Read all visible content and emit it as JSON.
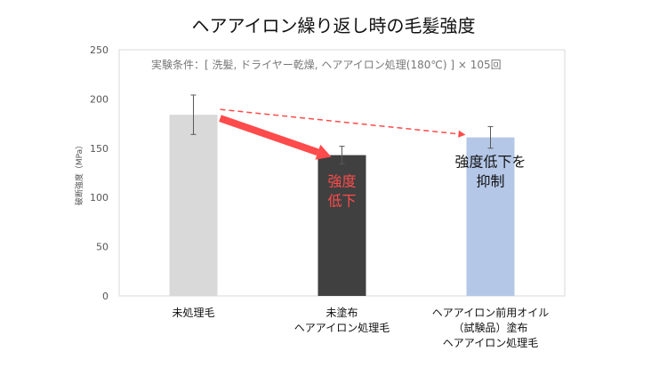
{
  "chart_data": {
    "type": "bar",
    "title": "ヘアアイロン繰り返し時の毛髪強度",
    "ylabel": "破断強度（MPa）",
    "ylim": [
      0,
      250
    ],
    "yticks": [
      0,
      50,
      100,
      150,
      200,
      250
    ],
    "grid": false,
    "condition_note": "実験条件：[ 洗髪, ドライヤー乾燥, ヘアアイロン処理(180℃) ] × 105回",
    "categories": [
      [
        "未処理毛"
      ],
      [
        "未塗布",
        "ヘアアイロン処理毛"
      ],
      [
        "ヘアアイロン前用オイル",
        "（試験品）塗布",
        "ヘアアイロン処理毛"
      ]
    ],
    "values": [
      184,
      143,
      161
    ],
    "errors": [
      20,
      9,
      11
    ],
    "colors": [
      "#d9d9d9",
      "#404040",
      "#b4c7e7"
    ],
    "category_label_colors": [
      [
        "#111111"
      ],
      [
        "#111111",
        "#111111"
      ],
      [
        "#2f5597",
        "#2f5597",
        "#111111"
      ]
    ],
    "annotations": {
      "drop": [
        "強度",
        "低下"
      ],
      "suppress": [
        "強度低下を",
        "抑制"
      ],
      "arrow_color": "#ff4b4b"
    }
  }
}
